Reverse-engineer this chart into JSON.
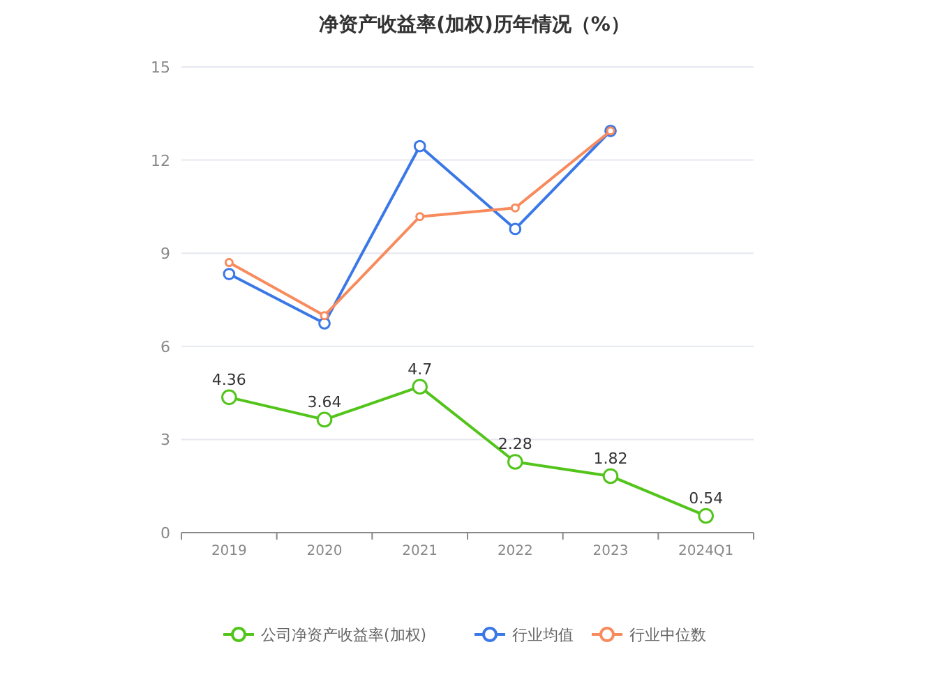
{
  "chart_data": {
    "type": "line",
    "title": "净资产收益率(加权)历年情况（%）",
    "categories": [
      "2019",
      "2020",
      "2021",
      "2022",
      "2023",
      "2024Q1"
    ],
    "series": [
      {
        "name": "公司净资产收益率(加权)",
        "color": "#52c41a",
        "values": [
          4.36,
          3.64,
          4.7,
          2.28,
          1.82,
          0.54
        ],
        "value_labels": [
          "4.36",
          "3.64",
          "4.7",
          "2.28",
          "1.82",
          "0.54"
        ]
      },
      {
        "name": "行业均值",
        "color": "#3b78e7",
        "values": [
          8.33,
          6.74,
          12.45,
          9.78,
          12.94,
          null
        ]
      },
      {
        "name": "行业中位数",
        "color": "#f88b5e",
        "values": [
          8.7,
          6.99,
          10.18,
          10.46,
          12.94,
          null
        ]
      }
    ],
    "ylim": [
      0,
      15
    ],
    "yticks": [
      0,
      3,
      6,
      9,
      12,
      15
    ],
    "grid": "y",
    "legend": "bottom",
    "marker": "circle",
    "line_style": "solid"
  }
}
